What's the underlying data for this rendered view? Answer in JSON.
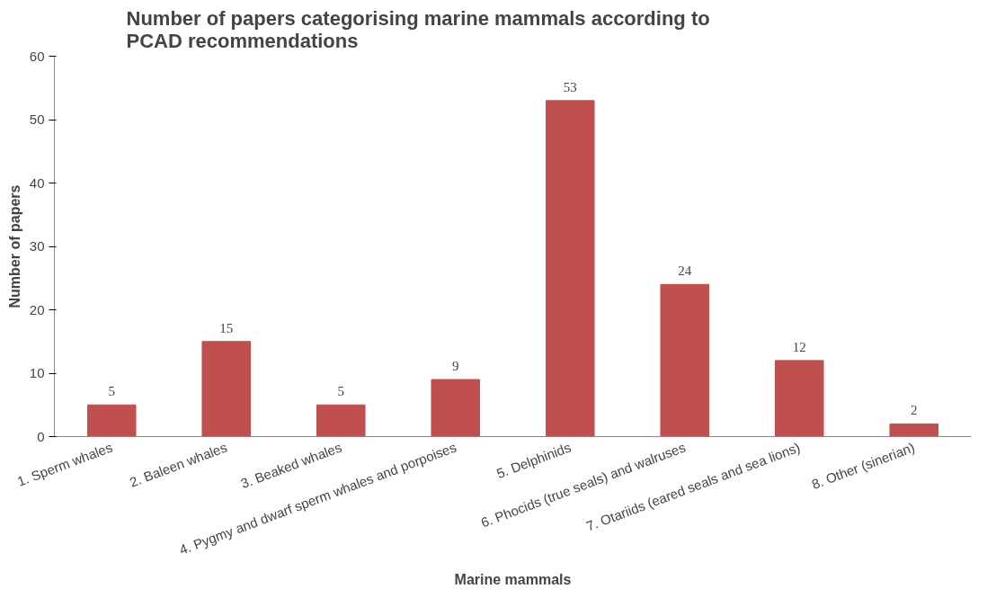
{
  "chart_data": {
    "type": "bar",
    "title": "Number of papers categorising marine mammals according to PCAD recommendations",
    "xlabel": "Marine mammals",
    "ylabel": "Number of papers",
    "categories": [
      "1. Sperm whales",
      "2. Baleen whales",
      "3. Beaked whales",
      "4. Pygmy and dwarf sperm whales and porpoises",
      "5. Delphinids",
      "6. Phocids (true seals) and walruses",
      "7. Otariids (eared seals and sea lions)",
      "8. Other (sinerian)"
    ],
    "values": [
      5,
      15,
      5,
      9,
      53,
      24,
      12,
      2
    ],
    "color": "#c0504d",
    "ylim": [
      0,
      60
    ],
    "yticks": [
      0,
      10,
      20,
      30,
      40,
      50,
      60
    ],
    "grid": false,
    "data_labels": true
  }
}
